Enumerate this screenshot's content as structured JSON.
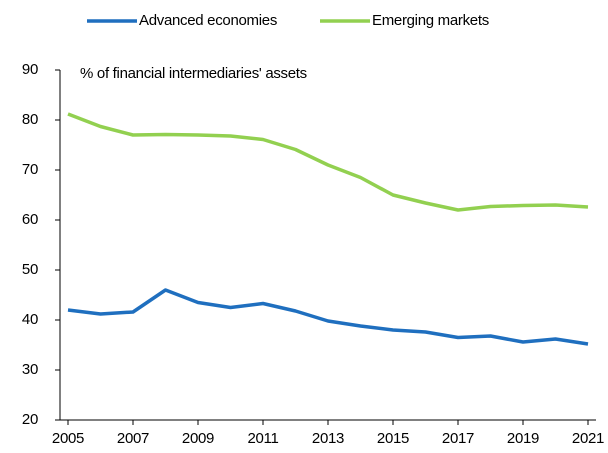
{
  "chart_data": {
    "type": "line",
    "annotation": "% of financial intermediaries' assets",
    "x": [
      2005,
      2006,
      2007,
      2008,
      2009,
      2010,
      2011,
      2012,
      2013,
      2014,
      2015,
      2016,
      2017,
      2018,
      2019,
      2020,
      2021
    ],
    "series": [
      {
        "name": "Advanced economies",
        "color": "#1f6fbf",
        "values": [
          42.0,
          41.2,
          41.6,
          46.0,
          43.5,
          42.5,
          43.3,
          41.8,
          39.8,
          38.8,
          38.0,
          37.6,
          36.5,
          36.8,
          35.6,
          36.2,
          35.2
        ]
      },
      {
        "name": "Emerging markets",
        "color": "#92d050",
        "values": [
          81.2,
          78.7,
          77.0,
          77.1,
          77.0,
          76.8,
          76.1,
          74.1,
          71.0,
          68.5,
          65.0,
          63.4,
          62.0,
          62.7,
          62.9,
          63.0,
          62.6
        ]
      }
    ],
    "xlim": [
      2005,
      2021
    ],
    "xticks": [
      2005,
      2007,
      2009,
      2011,
      2013,
      2015,
      2017,
      2019,
      2021
    ],
    "ylim": [
      20,
      90
    ],
    "yticks": [
      20,
      30,
      40,
      50,
      60,
      70,
      80,
      90
    ],
    "grid": false,
    "legend": "top"
  }
}
